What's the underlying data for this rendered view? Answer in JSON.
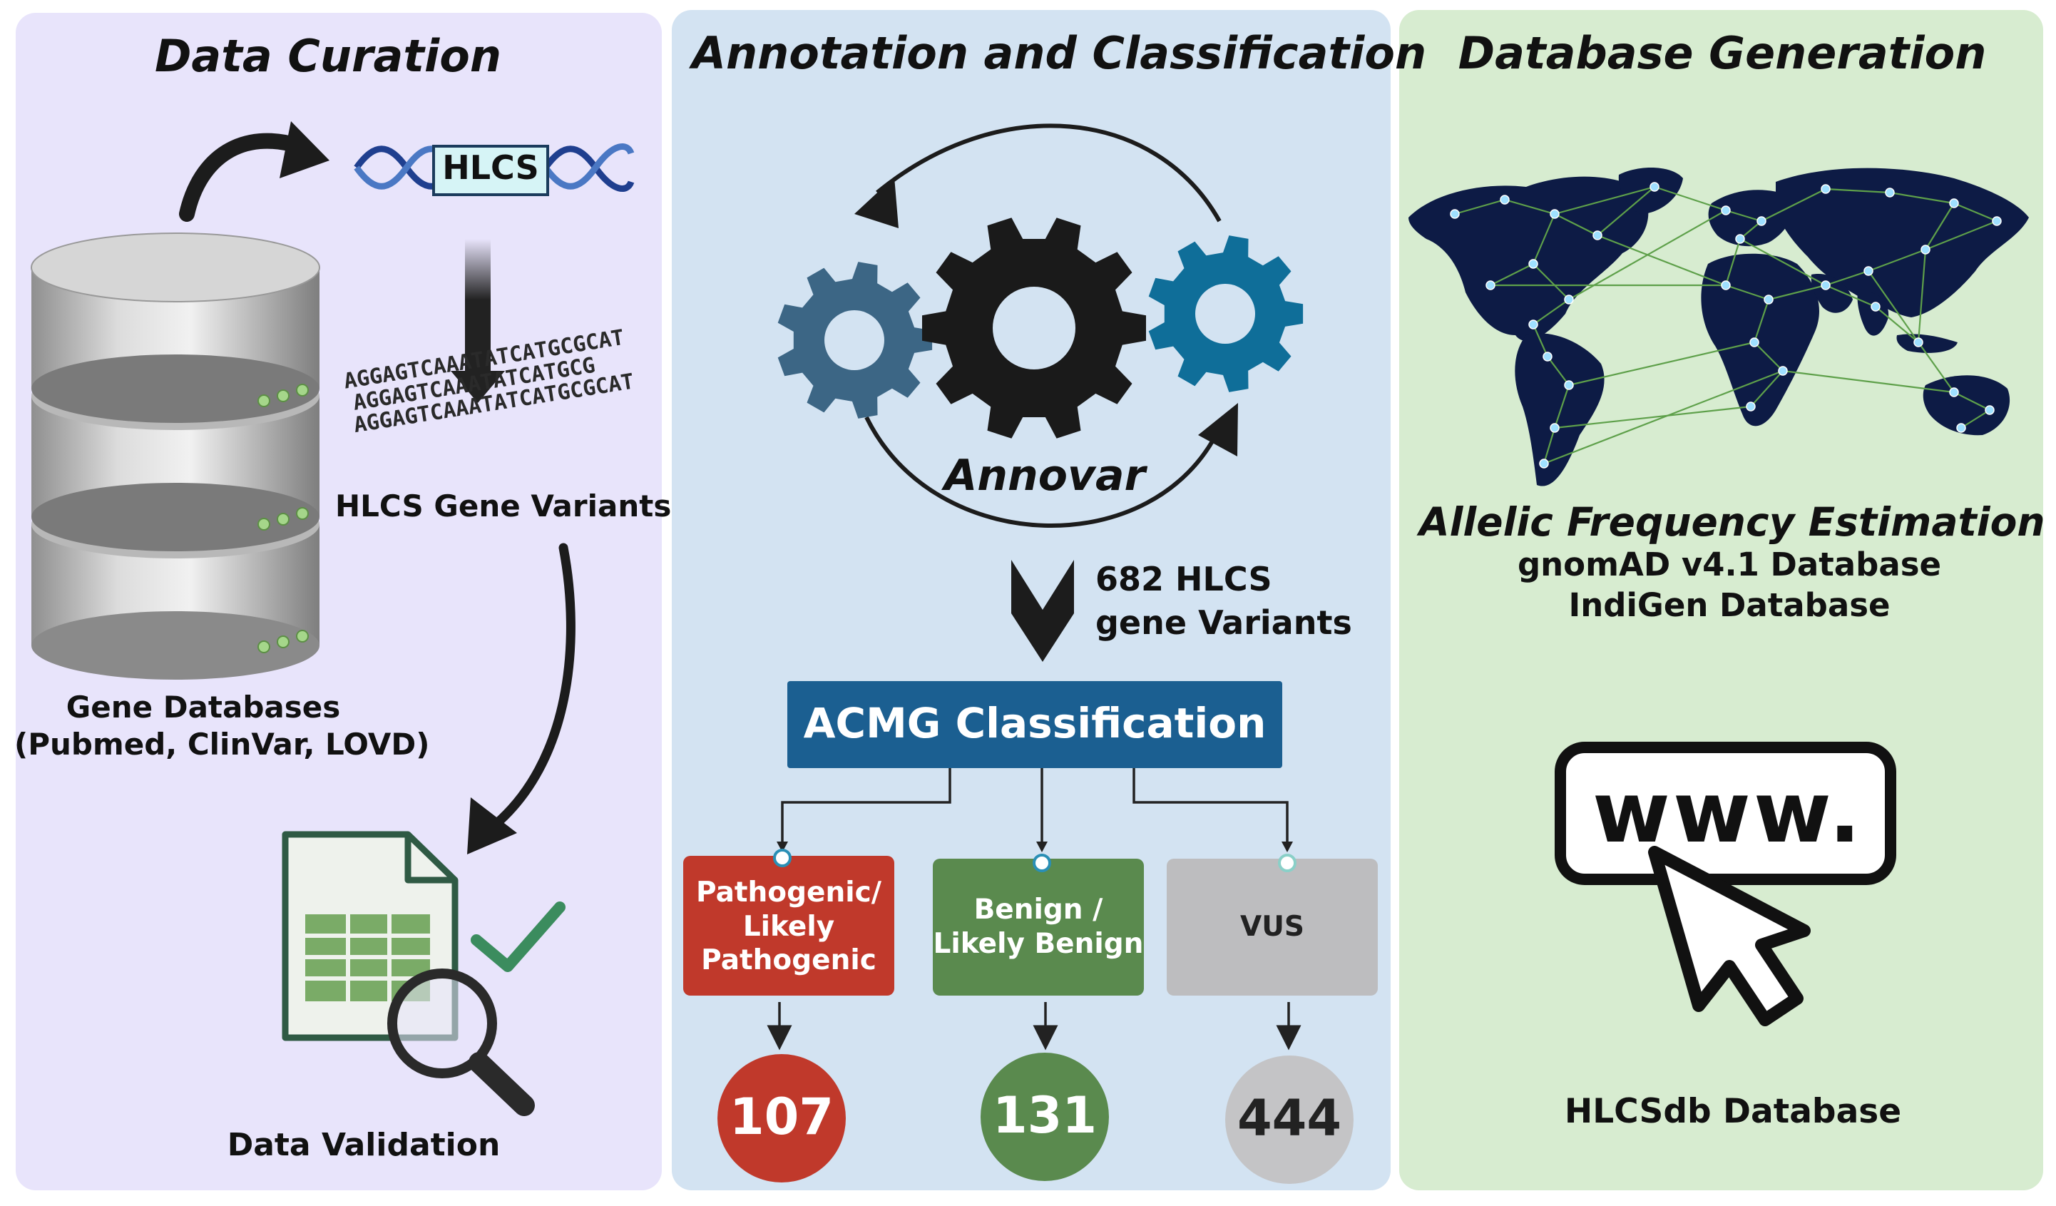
{
  "panels": {
    "curation": {
      "title": "Data Curation",
      "gene_label": "HLCS",
      "sequence_lines": [
        "AGGAGTCAAATATCATGCGCAT",
        "AGGAGTCAAATATCATGCG",
        "AGGAGTCAAATATCATGCGCAT"
      ],
      "variants_label": "HLCS Gene Variants",
      "db_label_line1": "Gene Databases",
      "db_label_line2": "(Pubmed, ClinVar, LOVD)",
      "validation_label": "Data Validation"
    },
    "annotation": {
      "title": "Annotation and Classification",
      "tool_label": "Annovar",
      "variants_count_line1": "682 HLCS",
      "variants_count_line2": "gene Variants",
      "acmg_label": "ACMG Classification",
      "categories": [
        {
          "line1": "Pathogenic/",
          "line2": "Likely",
          "line3": "Pathogenic",
          "count": "107",
          "box_color": "#c0392b",
          "circle_color": "#c0392b",
          "text_color": "#ffffff"
        },
        {
          "line1": "Benign /",
          "line2": "Likely Benign",
          "count": "131",
          "box_color": "#5a8a4e",
          "circle_color": "#5a8a4e",
          "text_color": "#ffffff"
        },
        {
          "line1": "VUS",
          "count": "444",
          "box_color": "#bdbdbf",
          "circle_color": "#c4c4c6",
          "text_color": "#222222"
        }
      ]
    },
    "database": {
      "title": "Database Generation",
      "freq_title": "Allelic Frequency Estimation",
      "source1": "gnomAD v4.1 Database",
      "source2": "IndiGen Database",
      "web_text": "www.",
      "db_name": "HLCSdb Database"
    }
  },
  "colors": {
    "curation_bg": "#e8e4fb",
    "annotation_bg": "#d3e3f2",
    "database_bg": "#d7ecd0",
    "acmg_box": "#1b5f91",
    "gear_slate": "#3c6685",
    "gear_black": "#1a1a1a",
    "gear_teal": "#0f6e99",
    "map_navy": "#0d1b45",
    "map_lines": "#5ea04a"
  },
  "icons": [
    "database-icon",
    "dna-icon",
    "spreadsheet-icon",
    "magnifier-icon",
    "check-icon",
    "gear-icon",
    "world-map-icon",
    "cursor-icon"
  ]
}
